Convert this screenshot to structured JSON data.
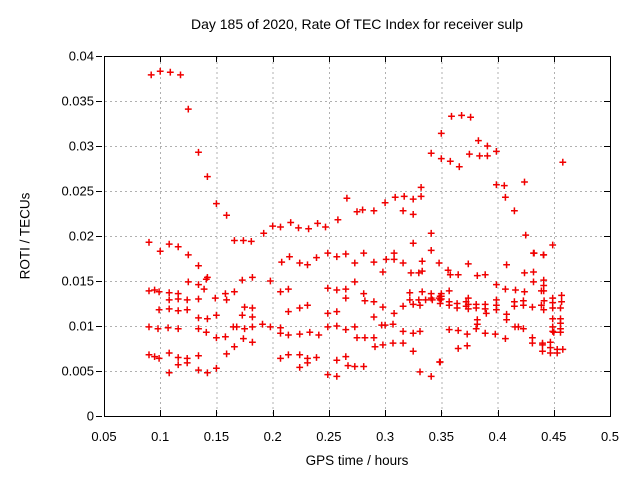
{
  "chart_data": {
    "type": "scatter",
    "title": "Day 185 of 2020, Rate Of TEC Index for receiver sulp",
    "xlabel": "GPS time / hours",
    "ylabel": "ROTI / TECUs",
    "xlim": [
      0.05,
      0.5
    ],
    "ylim": [
      0,
      0.04
    ],
    "xticks": [
      0.05,
      0.1,
      0.15,
      0.2,
      0.25,
      0.3,
      0.35,
      0.4,
      0.45,
      0.5
    ],
    "xtick_labels": [
      "0.05",
      "0.1",
      "0.15",
      "0.2",
      "0.25",
      "0.3",
      "0.35",
      "0.4",
      "0.45",
      "0.5"
    ],
    "yticks": [
      0,
      0.005,
      0.01,
      0.015,
      0.02,
      0.025,
      0.03,
      0.035,
      0.04
    ],
    "ytick_labels": [
      "0",
      "0.005",
      "0.01",
      "0.015",
      "0.02",
      "0.025",
      "0.03",
      "0.035",
      "0.04"
    ],
    "grid": true,
    "legend_visible": false,
    "marker": "plus",
    "marker_color": "#f00000",
    "grid_color": "#b0b0b0",
    "axis_color": "#000000",
    "background": "#ffffff",
    "points": [
      [
        0.092,
        0.0379
      ],
      [
        0.1,
        0.0383
      ],
      [
        0.109,
        0.0382
      ],
      [
        0.118,
        0.0379
      ],
      [
        0.125,
        0.0341
      ],
      [
        0.134,
        0.0293
      ],
      [
        0.142,
        0.0266
      ],
      [
        0.15,
        0.0236
      ],
      [
        0.159,
        0.0223
      ],
      [
        0.192,
        0.0203
      ],
      [
        0.2,
        0.0211
      ],
      [
        0.207,
        0.021
      ],
      [
        0.216,
        0.0215
      ],
      [
        0.223,
        0.0209
      ],
      [
        0.232,
        0.0208
      ],
      [
        0.24,
        0.0214
      ],
      [
        0.247,
        0.021
      ],
      [
        0.258,
        0.0218
      ],
      [
        0.266,
        0.0242
      ],
      [
        0.275,
        0.0227
      ],
      [
        0.28,
        0.0229
      ],
      [
        0.29,
        0.0228
      ],
      [
        0.3,
        0.0237
      ],
      [
        0.309,
        0.0243
      ],
      [
        0.316,
        0.0228
      ],
      [
        0.317,
        0.0244
      ],
      [
        0.325,
        0.0224
      ],
      [
        0.325,
        0.0241
      ],
      [
        0.332,
        0.0244
      ],
      [
        0.332,
        0.0254
      ],
      [
        0.341,
        0.0203
      ],
      [
        0.341,
        0.0292
      ],
      [
        0.35,
        0.0314
      ],
      [
        0.35,
        0.0286
      ],
      [
        0.358,
        0.0283
      ],
      [
        0.359,
        0.0333
      ],
      [
        0.366,
        0.0277
      ],
      [
        0.368,
        0.0334
      ],
      [
        0.375,
        0.0291
      ],
      [
        0.376,
        0.0332
      ],
      [
        0.383,
        0.0306
      ],
      [
        0.384,
        0.0289
      ],
      [
        0.391,
        0.03
      ],
      [
        0.391,
        0.0289
      ],
      [
        0.399,
        0.0294
      ],
      [
        0.399,
        0.0257
      ],
      [
        0.406,
        0.0256
      ],
      [
        0.407,
        0.0243
      ],
      [
        0.415,
        0.0228
      ],
      [
        0.424,
        0.026
      ],
      [
        0.425,
        0.0201
      ],
      [
        0.458,
        0.0282
      ],
      [
        0.09,
        0.0193
      ],
      [
        0.1,
        0.0183
      ],
      [
        0.108,
        0.0191
      ],
      [
        0.116,
        0.0188
      ],
      [
        0.125,
        0.0179
      ],
      [
        0.134,
        0.0167
      ],
      [
        0.142,
        0.0154
      ],
      [
        0.166,
        0.0195
      ],
      [
        0.174,
        0.0195
      ],
      [
        0.181,
        0.0194
      ],
      [
        0.208,
        0.0171
      ],
      [
        0.215,
        0.0177
      ],
      [
        0.224,
        0.017
      ],
      [
        0.231,
        0.0168
      ],
      [
        0.239,
        0.0176
      ],
      [
        0.249,
        0.0181
      ],
      [
        0.257,
        0.0177
      ],
      [
        0.265,
        0.018
      ],
      [
        0.273,
        0.017
      ],
      [
        0.281,
        0.0181
      ],
      [
        0.29,
        0.0171
      ],
      [
        0.298,
        0.016
      ],
      [
        0.301,
        0.0174
      ],
      [
        0.308,
        0.0181
      ],
      [
        0.308,
        0.0174
      ],
      [
        0.316,
        0.017
      ],
      [
        0.325,
        0.0192
      ],
      [
        0.333,
        0.0172
      ],
      [
        0.333,
        0.0161
      ],
      [
        0.341,
        0.0184
      ],
      [
        0.348,
        0.017
      ],
      [
        0.323,
        0.0159
      ],
      [
        0.33,
        0.0159
      ],
      [
        0.356,
        0.0162
      ],
      [
        0.358,
        0.0157
      ],
      [
        0.365,
        0.0157
      ],
      [
        0.374,
        0.0169
      ],
      [
        0.382,
        0.0156
      ],
      [
        0.389,
        0.0157
      ],
      [
        0.408,
        0.0168
      ],
      [
        0.424,
        0.0159
      ],
      [
        0.432,
        0.016
      ],
      [
        0.432,
        0.0149
      ],
      [
        0.441,
        0.0151
      ],
      [
        0.441,
        0.0145
      ],
      [
        0.441,
        0.0139
      ],
      [
        0.399,
        0.0146
      ],
      [
        0.407,
        0.0141
      ],
      [
        0.416,
        0.014
      ],
      [
        0.424,
        0.0138
      ],
      [
        0.439,
        0.0139
      ],
      [
        0.449,
        0.019
      ],
      [
        0.441,
        0.0179
      ],
      [
        0.432,
        0.0181
      ],
      [
        0.09,
        0.0139
      ],
      [
        0.095,
        0.014
      ],
      [
        0.099,
        0.0138
      ],
      [
        0.108,
        0.0137
      ],
      [
        0.116,
        0.0136
      ],
      [
        0.125,
        0.0149
      ],
      [
        0.134,
        0.0146
      ],
      [
        0.141,
        0.0152
      ],
      [
        0.139,
        0.0141
      ],
      [
        0.149,
        0.0131
      ],
      [
        0.158,
        0.0136
      ],
      [
        0.166,
        0.0138
      ],
      [
        0.173,
        0.0151
      ],
      [
        0.182,
        0.0154
      ],
      [
        0.198,
        0.015
      ],
      [
        0.108,
        0.0129
      ],
      [
        0.116,
        0.013
      ],
      [
        0.124,
        0.0129
      ],
      [
        0.134,
        0.013
      ],
      [
        0.159,
        0.0129
      ],
      [
        0.099,
        0.0118
      ],
      [
        0.108,
        0.0119
      ],
      [
        0.116,
        0.0117
      ],
      [
        0.124,
        0.0118
      ],
      [
        0.134,
        0.0109
      ],
      [
        0.142,
        0.0108
      ],
      [
        0.15,
        0.0112
      ],
      [
        0.175,
        0.0121
      ],
      [
        0.182,
        0.012
      ],
      [
        0.173,
        0.0112
      ],
      [
        0.182,
        0.011
      ],
      [
        0.09,
        0.0099
      ],
      [
        0.098,
        0.0097
      ],
      [
        0.107,
        0.0098
      ],
      [
        0.116,
        0.0097
      ],
      [
        0.134,
        0.0097
      ],
      [
        0.141,
        0.0093
      ],
      [
        0.15,
        0.0087
      ],
      [
        0.158,
        0.0088
      ],
      [
        0.165,
        0.0099
      ],
      [
        0.168,
        0.0099
      ],
      [
        0.175,
        0.0097
      ],
      [
        0.182,
        0.0099
      ],
      [
        0.191,
        0.0102
      ],
      [
        0.174,
        0.0086
      ],
      [
        0.182,
        0.0082
      ],
      [
        0.166,
        0.0077
      ],
      [
        0.09,
        0.0068
      ],
      [
        0.095,
        0.0066
      ],
      [
        0.099,
        0.0064
      ],
      [
        0.108,
        0.007
      ],
      [
        0.116,
        0.0065
      ],
      [
        0.124,
        0.0064
      ],
      [
        0.134,
        0.0067
      ],
      [
        0.116,
        0.0057
      ],
      [
        0.124,
        0.0059
      ],
      [
        0.108,
        0.0048
      ],
      [
        0.134,
        0.0051
      ],
      [
        0.142,
        0.0048
      ],
      [
        0.15,
        0.0053
      ],
      [
        0.159,
        0.0069
      ],
      [
        0.207,
        0.0064
      ],
      [
        0.214,
        0.0068
      ],
      [
        0.224,
        0.0068
      ],
      [
        0.231,
        0.0064
      ],
      [
        0.239,
        0.0065
      ],
      [
        0.257,
        0.0062
      ],
      [
        0.265,
        0.0066
      ],
      [
        0.224,
        0.0054
      ],
      [
        0.231,
        0.0059
      ],
      [
        0.249,
        0.0046
      ],
      [
        0.257,
        0.0044
      ],
      [
        0.267,
        0.0056
      ],
      [
        0.273,
        0.0055
      ],
      [
        0.281,
        0.0055
      ],
      [
        0.331,
        0.0049
      ],
      [
        0.341,
        0.0044
      ],
      [
        0.3485,
        0.006
      ],
      [
        0.198,
        0.0099
      ],
      [
        0.207,
        0.0098
      ],
      [
        0.207,
        0.0092
      ],
      [
        0.214,
        0.009
      ],
      [
        0.224,
        0.0091
      ],
      [
        0.233,
        0.0093
      ],
      [
        0.241,
        0.009
      ],
      [
        0.249,
        0.0099
      ],
      [
        0.257,
        0.01
      ],
      [
        0.265,
        0.0096
      ],
      [
        0.273,
        0.0099
      ],
      [
        0.275,
        0.0087
      ],
      [
        0.282,
        0.0087
      ],
      [
        0.29,
        0.0087
      ],
      [
        0.297,
        0.0101
      ],
      [
        0.3,
        0.0101
      ],
      [
        0.307,
        0.0102
      ],
      [
        0.316,
        0.0094
      ],
      [
        0.325,
        0.0092
      ],
      [
        0.331,
        0.0094
      ],
      [
        0.207,
        0.0138
      ],
      [
        0.214,
        0.0141
      ],
      [
        0.224,
        0.012
      ],
      [
        0.231,
        0.0123
      ],
      [
        0.214,
        0.0116
      ],
      [
        0.249,
        0.0142
      ],
      [
        0.249,
        0.0114
      ],
      [
        0.257,
        0.014
      ],
      [
        0.257,
        0.0116
      ],
      [
        0.265,
        0.0141
      ],
      [
        0.265,
        0.0131
      ],
      [
        0.273,
        0.0149
      ],
      [
        0.281,
        0.0136
      ],
      [
        0.282,
        0.0128
      ],
      [
        0.29,
        0.0127
      ],
      [
        0.29,
        0.011
      ],
      [
        0.298,
        0.0121
      ],
      [
        0.308,
        0.0114
      ],
      [
        0.316,
        0.0122
      ],
      [
        0.325,
        0.0124
      ],
      [
        0.333,
        0.0138
      ],
      [
        0.341,
        0.0136
      ],
      [
        0.341,
        0.0131
      ],
      [
        0.348,
        0.0131
      ],
      [
        0.322,
        0.0137
      ],
      [
        0.322,
        0.0129
      ],
      [
        0.33,
        0.0129
      ],
      [
        0.336,
        0.0129
      ],
      [
        0.342,
        0.0129
      ],
      [
        0.331,
        0.0123
      ],
      [
        0.35,
        0.0136
      ],
      [
        0.35,
        0.0133
      ],
      [
        0.35,
        0.013
      ],
      [
        0.291,
        0.0077
      ],
      [
        0.298,
        0.0079
      ],
      [
        0.307,
        0.0081
      ],
      [
        0.316,
        0.0081
      ],
      [
        0.325,
        0.0072
      ],
      [
        0.349,
        0.0133
      ],
      [
        0.349,
        0.0129
      ],
      [
        0.349,
        0.0125
      ],
      [
        0.357,
        0.0139
      ],
      [
        0.357,
        0.0127
      ],
      [
        0.357,
        0.0123
      ],
      [
        0.364,
        0.0125
      ],
      [
        0.364,
        0.012
      ],
      [
        0.372,
        0.0127
      ],
      [
        0.372,
        0.0122
      ],
      [
        0.374,
        0.0131
      ],
      [
        0.374,
        0.0124
      ],
      [
        0.374,
        0.0119
      ],
      [
        0.381,
        0.0124
      ],
      [
        0.381,
        0.012
      ],
      [
        0.382,
        0.0107
      ],
      [
        0.382,
        0.0102
      ],
      [
        0.389,
        0.0124
      ],
      [
        0.389,
        0.0119
      ],
      [
        0.39,
        0.0114
      ],
      [
        0.399,
        0.0129
      ],
      [
        0.399,
        0.0123
      ],
      [
        0.399,
        0.0118
      ],
      [
        0.408,
        0.0113
      ],
      [
        0.408,
        0.0107
      ],
      [
        0.415,
        0.0127
      ],
      [
        0.415,
        0.0122
      ],
      [
        0.423,
        0.0128
      ],
      [
        0.423,
        0.0123
      ],
      [
        0.431,
        0.0121
      ],
      [
        0.439,
        0.0123
      ],
      [
        0.4414,
        0.0128
      ],
      [
        0.441,
        0.0118
      ],
      [
        0.449,
        0.0131
      ],
      [
        0.449,
        0.0126
      ],
      [
        0.449,
        0.012
      ],
      [
        0.457,
        0.0134
      ],
      [
        0.457,
        0.0127
      ],
      [
        0.456,
        0.012
      ],
      [
        0.357,
        0.0096
      ],
      [
        0.365,
        0.0095
      ],
      [
        0.373,
        0.0091
      ],
      [
        0.381,
        0.0097
      ],
      [
        0.389,
        0.0092
      ],
      [
        0.398,
        0.0091
      ],
      [
        0.407,
        0.0086
      ],
      [
        0.4155,
        0.0099
      ],
      [
        0.4185,
        0.0099
      ],
      [
        0.423,
        0.0097
      ],
      [
        0.449,
        0.0108
      ],
      [
        0.456,
        0.0108
      ],
      [
        0.456,
        0.0103
      ],
      [
        0.456,
        0.0097
      ],
      [
        0.45,
        0.0093
      ],
      [
        0.456,
        0.0093
      ],
      [
        0.449,
        0.0099
      ],
      [
        0.449,
        0.0094
      ],
      [
        0.365,
        0.0075
      ],
      [
        0.373,
        0.0078
      ],
      [
        0.431,
        0.0087
      ],
      [
        0.431,
        0.0081
      ],
      [
        0.44,
        0.0081
      ],
      [
        0.44,
        0.0079
      ],
      [
        0.44,
        0.0072
      ],
      [
        0.447,
        0.0082
      ],
      [
        0.447,
        0.0076
      ],
      [
        0.447,
        0.007
      ],
      [
        0.453,
        0.0074
      ],
      [
        0.458,
        0.0074
      ],
      [
        0.453,
        0.007
      ],
      [
        0.349,
        0.006
      ],
      [
        0.4325,
        0.0181
      ],
      [
        0.4408,
        0.0179
      ]
    ]
  }
}
